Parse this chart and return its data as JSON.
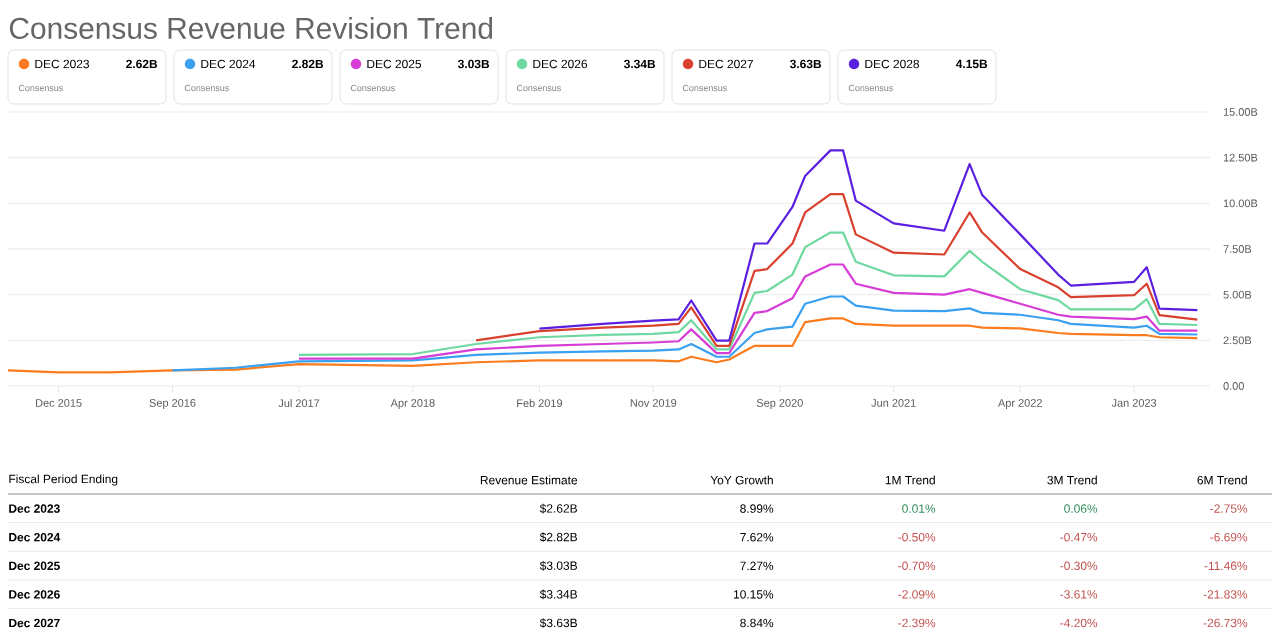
{
  "chart_data": {
    "type": "line",
    "title": "Consensus Revenue Revision Trend",
    "x": [
      "2015-08",
      "2015-12",
      "2016-04",
      "2016-09",
      "2017-02",
      "2017-07",
      "2018-04",
      "2018-09",
      "2019-02",
      "2019-07",
      "2019-11",
      "2020-01",
      "2020-02",
      "2020-04",
      "2020-05",
      "2020-07",
      "2020-08",
      "2020-10",
      "2020-11",
      "2021-01",
      "2021-02",
      "2021-03",
      "2021-06",
      "2021-10",
      "2021-12",
      "2022-01",
      "2022-04",
      "2022-07",
      "2022-08",
      "2023-01",
      "2023-02",
      "2023-03",
      "2023-06"
    ],
    "series": [
      {
        "name": "DEC 2023",
        "color": "#fb7c1e",
        "values": [
          0.85,
          0.75,
          0.75,
          0.85,
          0.9,
          1.2,
          1.1,
          1.3,
          1.4,
          1.4,
          1.4,
          1.35,
          1.6,
          1.3,
          1.45,
          2.2,
          2.2,
          2.2,
          3.5,
          3.7,
          3.7,
          3.4,
          3.3,
          3.3,
          3.3,
          3.2,
          3.15,
          2.9,
          2.85,
          2.78,
          2.78,
          2.67,
          2.62
        ]
      },
      {
        "name": "DEC 2024",
        "color": "#3aa0f0",
        "values": [
          null,
          null,
          null,
          0.85,
          1.0,
          1.35,
          1.4,
          1.7,
          1.83,
          1.9,
          1.94,
          2.0,
          2.3,
          1.6,
          1.6,
          2.9,
          3.1,
          3.25,
          4.5,
          4.9,
          4.9,
          4.4,
          4.13,
          4.1,
          4.25,
          4.0,
          3.9,
          3.6,
          3.4,
          3.2,
          3.3,
          2.85,
          2.82
        ]
      },
      {
        "name": "DEC 2025",
        "color": "#d63cd6",
        "values": [
          null,
          null,
          null,
          null,
          null,
          1.5,
          1.5,
          2.0,
          2.2,
          2.3,
          2.38,
          2.45,
          3.1,
          1.8,
          1.8,
          4.0,
          4.1,
          4.8,
          6.0,
          6.65,
          6.65,
          5.6,
          5.1,
          5.0,
          5.3,
          5.1,
          4.5,
          3.9,
          3.8,
          3.66,
          3.8,
          3.03,
          3.03
        ]
      },
      {
        "name": "DEC 2026",
        "color": "#6ed8a0",
        "values": [
          null,
          null,
          null,
          null,
          null,
          1.7,
          1.75,
          2.3,
          2.67,
          2.8,
          2.85,
          2.95,
          3.6,
          2.0,
          2.0,
          5.1,
          5.2,
          6.1,
          7.6,
          8.4,
          8.4,
          6.8,
          6.06,
          6.0,
          7.4,
          6.8,
          5.3,
          4.7,
          4.2,
          4.2,
          4.75,
          3.4,
          3.34
        ]
      },
      {
        "name": "DEC 2027",
        "color": "#d9412f",
        "values": [
          null,
          null,
          null,
          null,
          null,
          null,
          null,
          2.5,
          3.0,
          3.2,
          3.3,
          3.4,
          4.3,
          2.2,
          2.2,
          6.3,
          6.4,
          7.8,
          9.5,
          10.5,
          10.5,
          8.3,
          7.3,
          7.2,
          9.5,
          8.4,
          6.4,
          5.4,
          4.86,
          4.97,
          5.6,
          3.88,
          3.63
        ]
      },
      {
        "name": "DEC 2028",
        "color": "#5b1fe0",
        "values": [
          null,
          null,
          null,
          null,
          null,
          null,
          null,
          null,
          3.14,
          3.4,
          3.58,
          3.65,
          4.68,
          2.48,
          2.48,
          7.8,
          7.8,
          9.8,
          11.5,
          12.9,
          12.9,
          10.15,
          8.9,
          8.5,
          12.15,
          10.45,
          8.3,
          6.1,
          5.5,
          5.7,
          6.5,
          4.24,
          4.15
        ]
      }
    ],
    "xlim": [
      "2015-08",
      "2023-07"
    ],
    "xticks": [
      {
        "value": "2015-12",
        "label": "Dec 2015"
      },
      {
        "value": "2016-09",
        "label": "Sep 2016"
      },
      {
        "value": "2017-07",
        "label": "Jul 2017"
      },
      {
        "value": "2018-04",
        "label": "Apr 2018"
      },
      {
        "value": "2019-02",
        "label": "Feb 2019"
      },
      {
        "value": "2019-11",
        "label": "Nov 2019"
      },
      {
        "value": "2020-09",
        "label": "Sep 2020"
      },
      {
        "value": "2021-06",
        "label": "Jun 2021"
      },
      {
        "value": "2022-04",
        "label": "Apr 2022"
      },
      {
        "value": "2023-01",
        "label": "Jan 2023"
      }
    ],
    "ylim": [
      0,
      15
    ],
    "yticks": [
      {
        "value": 0,
        "label": "0.00"
      },
      {
        "value": 2.5,
        "label": "2.50B"
      },
      {
        "value": 5,
        "label": "5.00B"
      },
      {
        "value": 7.5,
        "label": "7.50B"
      },
      {
        "value": 10,
        "label": "10.00B"
      },
      {
        "value": 12.5,
        "label": "12.50B"
      },
      {
        "value": 15,
        "label": "15.00B"
      }
    ],
    "grid": "y",
    "legend": "top",
    "annotations": [
      "2.62B",
      "2.82B",
      "3.03B",
      "3.34B",
      "3.63B",
      "4.15B",
      "Consensus",
      "Consensus",
      "Consensus",
      "Consensus",
      "Consensus",
      "Consensus",
      "Fiscal Period Ending",
      "Revenue Estimate",
      "YoY Growth",
      "1M Trend",
      "3M Trend",
      "6M Trend",
      "Dec 2023",
      "$2.62B",
      "8.99%",
      "0.01%",
      "0.06%",
      "-2.75%",
      "Dec 2024",
      "$2.82B",
      "7.62%",
      "-0.50%",
      "-0.47%",
      "-6.69%",
      "Dec 2025",
      "$3.03B",
      "7.27%",
      "-0.70%",
      "-0.30%",
      "-11.46%",
      "Dec 2026",
      "$3.34B",
      "10.15%",
      "-2.09%",
      "-3.61%",
      "-21.83%",
      "Dec 2027",
      "$3.63B",
      "8.84%",
      "-2.39%",
      "-4.20%",
      "-26.73%"
    ]
  }
}
